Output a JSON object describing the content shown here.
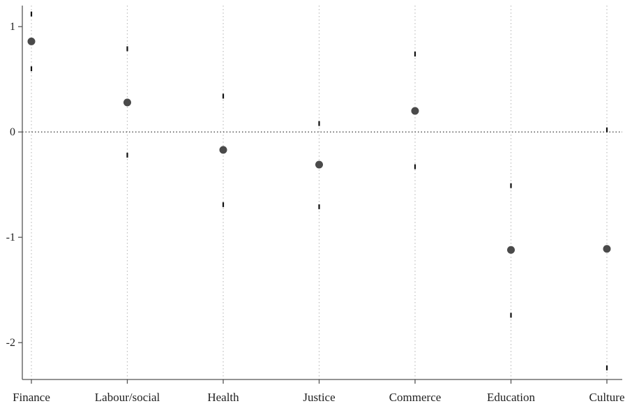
{
  "chart_data": {
    "type": "scatter",
    "title": "",
    "xlabel": "",
    "ylabel": "",
    "categories": [
      "Finance",
      "Labour/social",
      "Health",
      "Justice",
      "Commerce",
      "Education",
      "Culture"
    ],
    "estimates": [
      0.86,
      0.28,
      -0.17,
      -0.31,
      0.2,
      -1.12,
      -1.11
    ],
    "ci_lower": [
      0.6,
      -0.22,
      -0.69,
      -0.71,
      -0.33,
      -1.74,
      -2.24
    ],
    "ci_upper": [
      1.12,
      0.79,
      0.34,
      0.08,
      0.74,
      -0.51,
      0.02
    ],
    "ylim": [
      -2.35,
      1.2
    ],
    "yticks": [
      -2,
      -1,
      0,
      1
    ],
    "ytick_labels": [
      "-2",
      "-1",
      "0",
      "1"
    ],
    "reference_line": 0,
    "grid": "vertical-dotted",
    "legend": "none",
    "colors": {
      "point": "#4a4a4a",
      "ci_mark": "#111111",
      "axis": "#555555",
      "grid": "#bdbdbd",
      "reference": "#444444"
    }
  }
}
